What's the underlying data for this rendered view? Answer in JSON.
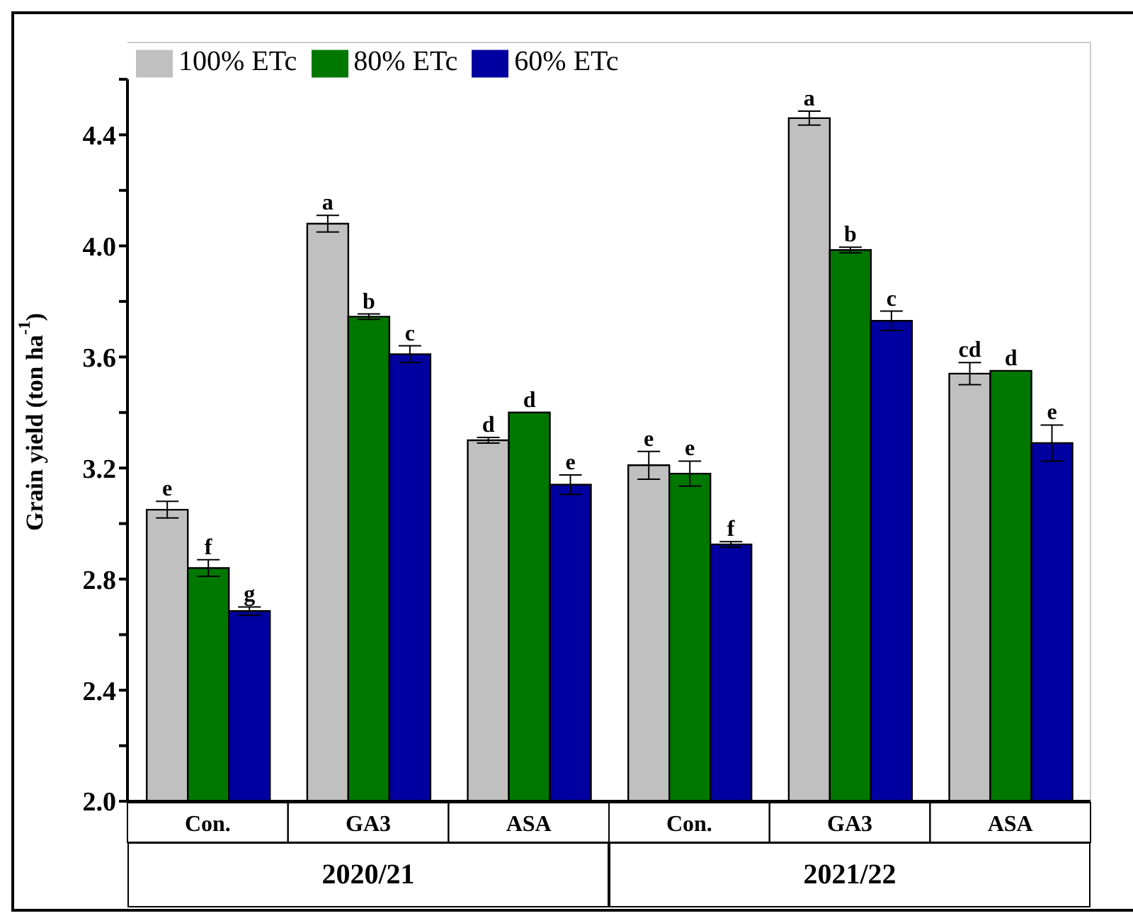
{
  "chart_data": {
    "type": "bar",
    "ylabel": "Grain yield (ton ha$^{-1}$)",
    "categories": [
      "Con.",
      "GA3",
      "ASA",
      "Con.",
      "GA3",
      "ASA"
    ],
    "annotations": [
      "2020/21",
      "2021/22"
    ],
    "series": [
      {
        "name": "100% ETc",
        "color": "#c0c0c0",
        "values": [
          3.05,
          4.08,
          3.3,
          3.21,
          4.46,
          3.54
        ],
        "errors": [
          0.03,
          0.03,
          0.01,
          0.05,
          0.025,
          0.04
        ],
        "value_labels": [
          "e",
          "a",
          "d",
          "e",
          "a",
          "cd"
        ]
      },
      {
        "name": "80% ETc",
        "color": "#007800",
        "values": [
          2.84,
          3.745,
          3.4,
          3.18,
          3.985,
          3.55
        ],
        "errors": [
          0.03,
          0.01,
          null,
          0.045,
          0.01,
          null
        ],
        "value_labels": [
          "f",
          "b",
          "d",
          "e",
          "b",
          "d"
        ]
      },
      {
        "name": "60% ETc",
        "color": "#0000a0",
        "values": [
          2.685,
          3.61,
          3.14,
          2.925,
          3.73,
          3.29
        ],
        "errors": [
          0.015,
          0.03,
          0.035,
          0.01,
          0.035,
          0.065
        ],
        "value_labels": [
          "g",
          "c",
          "e",
          "f",
          "c",
          "e"
        ]
      }
    ],
    "ylim": [
      2.0,
      4.6
    ],
    "yticks": [
      {
        "value": 2.0,
        "label": "2.0"
      },
      {
        "value": 2.2,
        "label": null
      },
      {
        "value": 2.4,
        "label": "2.4"
      },
      {
        "value": 2.6,
        "label": null
      },
      {
        "value": 2.8,
        "label": "2.8"
      },
      {
        "value": 3.0,
        "label": null
      },
      {
        "value": 3.2,
        "label": "3.2"
      },
      {
        "value": 3.4,
        "label": null
      },
      {
        "value": 3.6,
        "label": "3.6"
      },
      {
        "value": 3.8,
        "label": null
      },
      {
        "value": 4.0,
        "label": "4.0"
      },
      {
        "value": 4.2,
        "label": null
      },
      {
        "value": 4.4,
        "label": "4.4"
      },
      {
        "value": 4.6,
        "label": null
      }
    ],
    "grid": false,
    "legend": "top left"
  }
}
